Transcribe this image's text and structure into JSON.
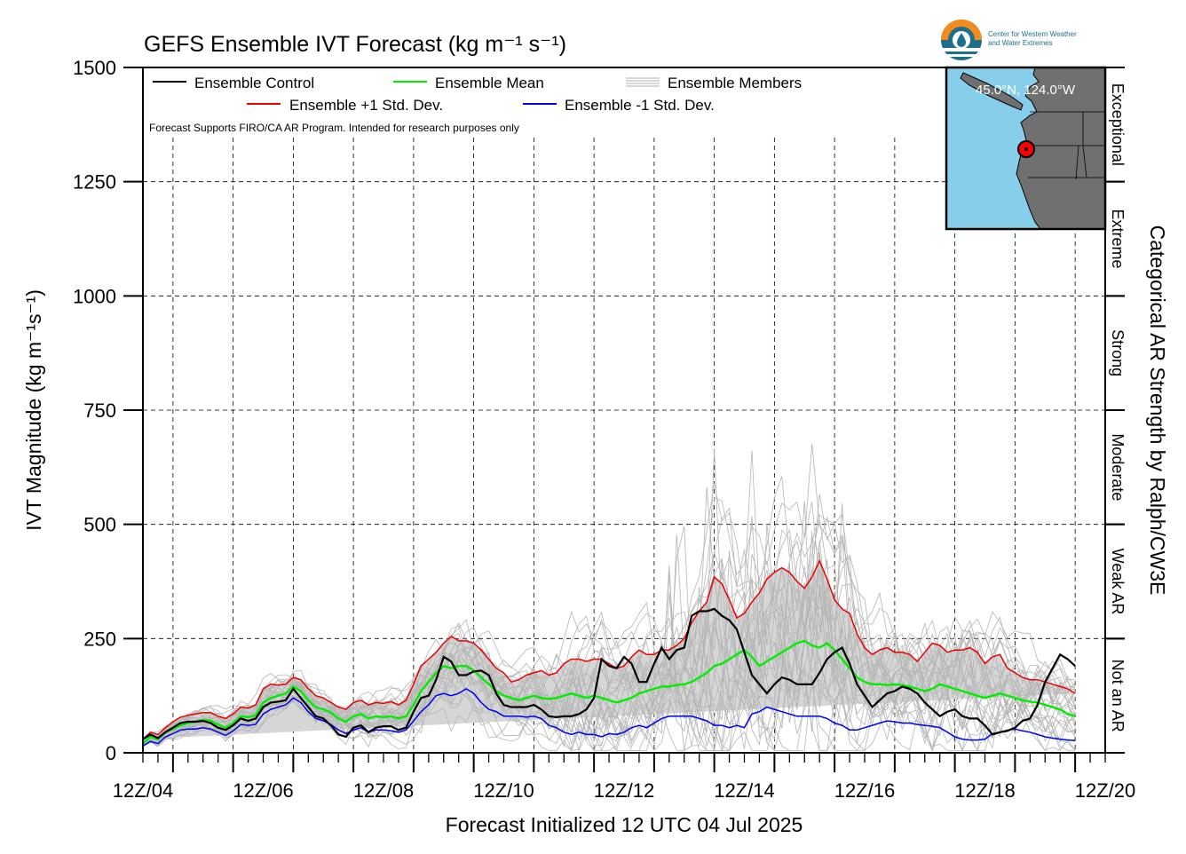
{
  "logo": {
    "line1": "Center for Western Weather",
    "line2": "and Water Extremes",
    "colors": {
      "orange": "#f28c1e",
      "teal": "#1f6f8b",
      "navy": "#163a5f"
    }
  },
  "inset_map": {
    "coord_label": "45.0°N, 124.0°W",
    "water_color": "#87ceeb",
    "land_color": "#707070",
    "marker_color": "#ff0000"
  },
  "chart_data": {
    "type": "line",
    "title": "GEFS Ensemble IVT Forecast (kg m⁻¹ s⁻¹)",
    "xlabel": "Forecast Initialized 12 UTC 04 Jul 2025",
    "ylabel": "IVT Magnitude (kg m⁻¹s⁻¹)",
    "ylabel_right": "Categorical AR Strength by Ralph/CW3E",
    "note": "Forecast Supports FIRO/CA AR Program. Intended for research purposes only",
    "ylim": [
      0,
      1500
    ],
    "yticks": [
      0,
      250,
      500,
      750,
      1000,
      1250,
      1500
    ],
    "xlim_days": [
      4.5,
      20.5
    ],
    "xtick_labels": [
      "12Z/04",
      "12Z/06",
      "12Z/08",
      "12Z/10",
      "12Z/12",
      "12Z/14",
      "12Z/16",
      "12Z/18",
      "12Z/20"
    ],
    "grid": true,
    "legend": {
      "placement": "top-left",
      "entries": [
        {
          "label": "Ensemble Control",
          "color": "#000000"
        },
        {
          "label": "Ensemble Mean",
          "color": "#00ee00"
        },
        {
          "label": "Ensemble Members",
          "color": "#b0b0b0"
        },
        {
          "label": "Ensemble +1 Std. Dev.",
          "color": "#ee0000"
        },
        {
          "label": "Ensemble -1 Std. Dev.",
          "color": "#0000ee"
        }
      ]
    },
    "categories_right": [
      {
        "label": "Not an AR",
        "from": 0,
        "to": 250
      },
      {
        "label": "Weak AR",
        "from": 250,
        "to": 500
      },
      {
        "label": "Moderate",
        "from": 500,
        "to": 750
      },
      {
        "label": "Strong",
        "from": 750,
        "to": 1000
      },
      {
        "label": "Extreme",
        "from": 1000,
        "to": 1250
      },
      {
        "label": "Exceptional",
        "from": 1250,
        "to": 1500
      }
    ],
    "x_days": [
      4.5,
      4.625,
      4.75,
      4.875,
      5.0,
      5.125,
      5.25,
      5.375,
      5.5,
      5.625,
      5.75,
      5.875,
      6.0,
      6.125,
      6.25,
      6.375,
      6.5,
      6.625,
      6.75,
      6.875,
      7.0,
      7.125,
      7.25,
      7.375,
      7.5,
      7.625,
      7.75,
      7.875,
      8.0,
      8.125,
      8.25,
      8.375,
      8.5,
      8.625,
      8.75,
      8.875,
      9.0,
      9.125,
      9.25,
      9.375,
      9.5,
      9.625,
      9.75,
      9.875,
      10.0,
      10.125,
      10.25,
      10.375,
      10.5,
      10.625,
      10.75,
      10.875,
      11.0,
      11.125,
      11.25,
      11.375,
      11.5,
      11.625,
      11.75,
      11.875,
      12.0,
      12.125,
      12.25,
      12.375,
      12.5,
      12.625,
      12.75,
      12.875,
      13.0,
      13.125,
      13.25,
      13.375,
      13.5,
      13.625,
      13.75,
      13.875,
      14.0,
      14.125,
      14.25,
      14.375,
      14.5,
      14.625,
      14.75,
      14.875,
      15.0,
      15.125,
      15.25,
      15.375,
      15.5,
      15.625,
      15.75,
      15.875,
      16.0,
      16.125,
      16.25,
      16.375,
      16.5,
      16.625,
      16.75,
      16.875,
      17.0,
      17.125,
      17.25,
      17.375,
      17.5,
      17.625,
      17.75,
      17.875,
      18.0,
      18.125,
      18.25,
      18.375,
      18.5,
      18.625,
      18.75,
      18.875,
      19.0,
      19.125,
      19.25,
      19.375,
      19.5,
      19.625,
      19.75,
      19.875,
      20.0,
      20.125,
      20.25,
      20.375,
      20.5
    ],
    "series": [
      {
        "name": "Ensemble Control",
        "color": "#000000",
        "values": [
          30,
          40,
          32,
          45,
          55,
          65,
          68,
          68,
          70,
          65,
          55,
          50,
          60,
          75,
          70,
          75,
          100,
          110,
          112,
          115,
          140,
          120,
          100,
          80,
          75,
          60,
          40,
          35,
          55,
          60,
          45,
          55,
          58,
          58,
          50,
          55,
          90,
          120,
          125,
          160,
          210,
          200,
          170,
          170,
          178,
          180,
          170,
          130,
          105,
          100,
          100,
          100,
          105,
          95,
          80,
          78,
          80,
          80,
          85,
          95,
          120,
          205,
          190,
          185,
          210,
          195,
          155,
          155,
          195,
          230,
          205,
          225,
          230,
          300,
          310,
          310,
          315,
          300,
          290,
          270,
          220,
          170,
          150,
          130,
          150,
          165,
          160,
          150,
          150,
          150,
          175,
          205,
          220,
          230,
          195,
          150,
          125,
          100,
          115,
          130,
          135,
          145,
          140,
          130,
          110,
          95,
          80,
          90,
          95,
          80,
          75,
          75,
          60,
          40,
          45,
          48,
          55,
          70,
          75,
          105,
          155,
          185,
          215,
          205,
          190
        ]
      },
      {
        "name": "Ensemble Mean",
        "color": "#00ee00",
        "values": [
          20,
          35,
          30,
          45,
          52,
          60,
          65,
          68,
          72,
          70,
          62,
          55,
          65,
          80,
          78,
          82,
          110,
          120,
          125,
          130,
          145,
          135,
          115,
          100,
          95,
          88,
          75,
          68,
          80,
          85,
          75,
          80,
          78,
          80,
          75,
          80,
          105,
          135,
          155,
          175,
          190,
          185,
          190,
          190,
          180,
          165,
          150,
          135,
          125,
          120,
          115,
          120,
          125,
          120,
          118,
          120,
          125,
          130,
          125,
          120,
          125,
          120,
          115,
          110,
          115,
          120,
          130,
          135,
          140,
          145,
          145,
          148,
          150,
          155,
          165,
          175,
          190,
          195,
          205,
          215,
          225,
          210,
          190,
          200,
          210,
          220,
          230,
          240,
          245,
          235,
          230,
          240,
          225,
          205,
          185,
          165,
          155,
          150,
          150,
          148,
          150,
          148,
          145,
          140,
          135,
          140,
          150,
          145,
          140,
          135,
          130,
          125,
          120,
          125,
          130,
          125,
          120,
          115,
          112,
          110,
          105,
          100,
          95,
          85,
          80
        ]
      },
      {
        "name": "Ensemble +1 Std. Dev.",
        "color": "#ee0000",
        "values": [
          30,
          45,
          40,
          55,
          68,
          78,
          82,
          85,
          88,
          88,
          80,
          75,
          85,
          100,
          98,
          105,
          140,
          150,
          148,
          150,
          165,
          160,
          140,
          125,
          120,
          110,
          100,
          95,
          110,
          115,
          105,
          110,
          108,
          112,
          105,
          115,
          150,
          190,
          205,
          220,
          240,
          255,
          245,
          245,
          240,
          225,
          205,
          185,
          175,
          155,
          160,
          170,
          175,
          180,
          170,
          175,
          195,
          205,
          205,
          200,
          205,
          205,
          195,
          185,
          190,
          210,
          225,
          215,
          215,
          225,
          225,
          235,
          250,
          285,
          310,
          330,
          385,
          370,
          335,
          295,
          305,
          330,
          350,
          380,
          395,
          405,
          395,
          375,
          360,
          385,
          420,
          380,
          335,
          315,
          305,
          260,
          230,
          215,
          225,
          230,
          220,
          220,
          215,
          200,
          220,
          240,
          235,
          220,
          225,
          225,
          230,
          220,
          195,
          210,
          215,
          185,
          175,
          165,
          160,
          160,
          155,
          150,
          145,
          140,
          130
        ]
      },
      {
        "name": "Ensemble -1 Std. Dev.",
        "color": "#0000ee",
        "values": [
          15,
          25,
          20,
          35,
          42,
          50,
          52,
          52,
          55,
          52,
          45,
          38,
          48,
          62,
          60,
          62,
          85,
          95,
          100,
          105,
          120,
          110,
          90,
          75,
          70,
          62,
          50,
          42,
          50,
          55,
          45,
          50,
          50,
          48,
          45,
          50,
          70,
          90,
          105,
          125,
          130,
          125,
          130,
          140,
          130,
          110,
          95,
          90,
          80,
          80,
          80,
          78,
          80,
          75,
          60,
          55,
          45,
          40,
          45,
          40,
          40,
          35,
          42,
          40,
          45,
          55,
          60,
          55,
          65,
          75,
          80,
          80,
          80,
          80,
          75,
          70,
          60,
          60,
          55,
          60,
          55,
          85,
          90,
          100,
          95,
          90,
          85,
          80,
          80,
          80,
          80,
          75,
          65,
          60,
          50,
          50,
          55,
          60,
          65,
          70,
          68,
          65,
          65,
          62,
          60,
          58,
          55,
          45,
          35,
          30,
          28,
          28,
          30,
          42,
          45,
          50,
          52,
          48,
          45,
          40,
          35,
          32,
          30,
          28,
          27
        ]
      }
    ]
  }
}
